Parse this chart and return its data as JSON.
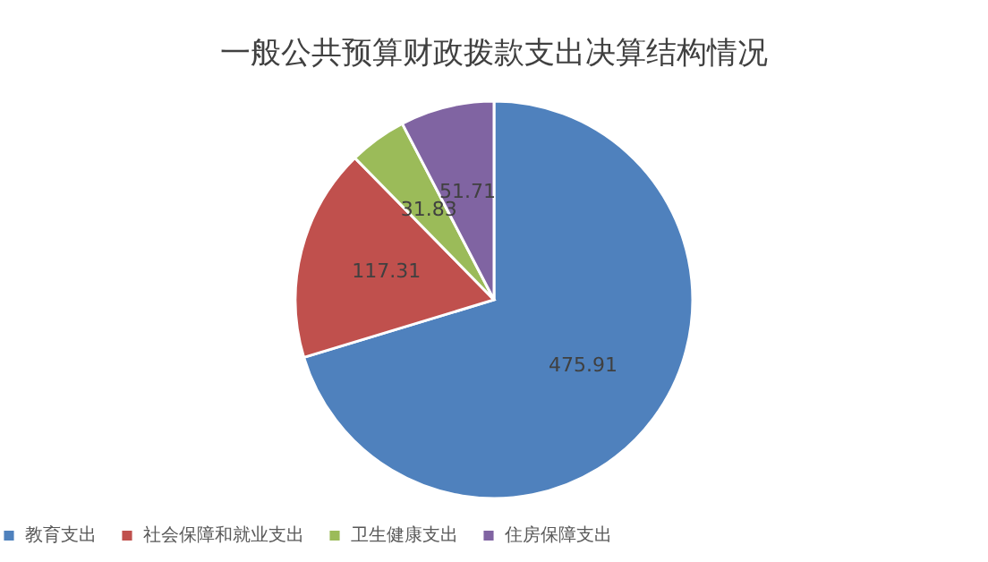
{
  "chart_data": {
    "type": "pie",
    "title": "一般公共预算财政拨款支出决算结构情况",
    "categories": [
      "教育支出",
      "社会保障和就业支出",
      "卫生健康支出",
      "住房保障支出"
    ],
    "values": [
      475.91,
      117.31,
      31.83,
      51.71
    ],
    "colors": [
      "#4f81bd",
      "#c0504d",
      "#9bbb59",
      "#8064a2"
    ],
    "data_labels": true,
    "legend": "bottom"
  }
}
